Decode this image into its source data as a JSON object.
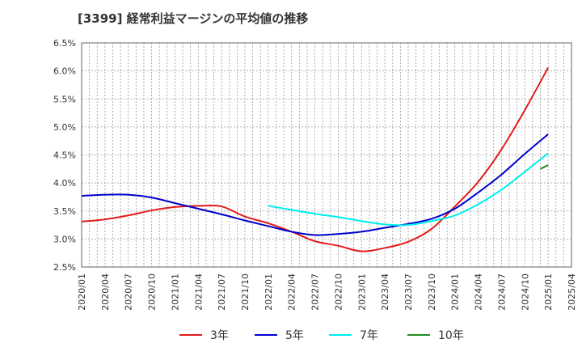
{
  "chart_data": {
    "type": "line",
    "title": "[3399]  経常利益マージンの平均値の推移",
    "xlabel": "",
    "ylabel": "",
    "ylim": [
      2.5,
      6.5
    ],
    "y_ticks": [
      "6.5%",
      "6.0%",
      "5.5%",
      "5.0%",
      "4.5%",
      "4.0%",
      "3.5%",
      "3.0%",
      "2.5%"
    ],
    "x_ticks": [
      "2020/01",
      "2020/04",
      "2020/07",
      "2020/10",
      "2021/01",
      "2021/04",
      "2021/07",
      "2021/10",
      "2022/01",
      "2022/04",
      "2022/07",
      "2022/10",
      "2023/01",
      "2023/04",
      "2023/07",
      "2023/10",
      "2024/01",
      "2024/04",
      "2024/07",
      "2024/10",
      "2025/01",
      "2025/04"
    ],
    "grid": true,
    "legend_position": "bottom",
    "series": [
      {
        "name": "3年",
        "color": "#e31a1c",
        "points": [
          [
            "2020/01",
            3.31
          ],
          [
            "2020/04",
            3.35
          ],
          [
            "2020/07",
            3.42
          ],
          [
            "2020/10",
            3.51
          ],
          [
            "2021/01",
            3.57
          ],
          [
            "2021/04",
            3.59
          ],
          [
            "2021/07",
            3.58
          ],
          [
            "2021/10",
            3.4
          ],
          [
            "2022/01",
            3.28
          ],
          [
            "2022/04",
            3.13
          ],
          [
            "2022/07",
            2.96
          ],
          [
            "2022/10",
            2.88
          ],
          [
            "2023/01",
            2.78
          ],
          [
            "2023/04",
            2.84
          ],
          [
            "2023/07",
            2.95
          ],
          [
            "2023/10",
            3.18
          ],
          [
            "2024/01",
            3.58
          ],
          [
            "2024/04",
            4.02
          ],
          [
            "2024/07",
            4.6
          ],
          [
            "2024/10",
            5.3
          ],
          [
            "2025/01",
            6.06
          ]
        ]
      },
      {
        "name": "5年",
        "color": "#0000cc",
        "points": [
          [
            "2020/01",
            3.77
          ],
          [
            "2020/04",
            3.79
          ],
          [
            "2020/07",
            3.79
          ],
          [
            "2020/10",
            3.74
          ],
          [
            "2021/01",
            3.64
          ],
          [
            "2021/04",
            3.54
          ],
          [
            "2021/07",
            3.44
          ],
          [
            "2021/10",
            3.33
          ],
          [
            "2022/01",
            3.23
          ],
          [
            "2022/04",
            3.13
          ],
          [
            "2022/07",
            3.07
          ],
          [
            "2022/10",
            3.09
          ],
          [
            "2023/01",
            3.13
          ],
          [
            "2023/04",
            3.2
          ],
          [
            "2023/07",
            3.27
          ],
          [
            "2023/10",
            3.36
          ],
          [
            "2024/01",
            3.54
          ],
          [
            "2024/04",
            3.83
          ],
          [
            "2024/07",
            4.15
          ],
          [
            "2024/10",
            4.52
          ],
          [
            "2025/01",
            4.87
          ]
        ]
      },
      {
        "name": "7年",
        "color": "#00eeee",
        "points": [
          [
            "2022/01",
            3.59
          ],
          [
            "2022/04",
            3.52
          ],
          [
            "2022/07",
            3.45
          ],
          [
            "2022/10",
            3.39
          ],
          [
            "2023/01",
            3.32
          ],
          [
            "2023/04",
            3.26
          ],
          [
            "2023/07",
            3.25
          ],
          [
            "2023/10",
            3.32
          ],
          [
            "2024/01",
            3.42
          ],
          [
            "2024/04",
            3.62
          ],
          [
            "2024/07",
            3.88
          ],
          [
            "2024/10",
            4.2
          ],
          [
            "2025/01",
            4.53
          ]
        ]
      },
      {
        "name": "10年",
        "color": "#228b22",
        "points": [
          [
            "2024/12",
            4.25
          ],
          [
            "2025/01",
            4.32
          ]
        ]
      }
    ]
  }
}
